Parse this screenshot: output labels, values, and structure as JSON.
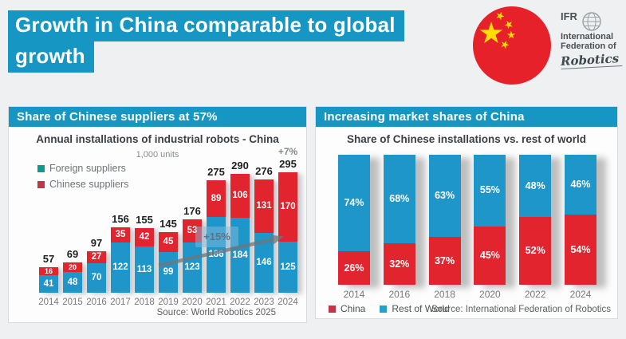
{
  "colors": {
    "accent": "#1697c3",
    "bar_blue": "#1e96ca",
    "bar_red": "#e2242f",
    "legend_teal": "#0d9b8f",
    "legend_crimson": "#c73249",
    "flag_red": "#e62129",
    "flag_yellow": "#ffde00",
    "page_background": "#eef0f1"
  },
  "header": {
    "title_line1": "Growth in China comparable to global",
    "title_line2": "growth"
  },
  "logo": {
    "abbr": "IFR",
    "line1": "International",
    "line2": "Federation of",
    "script": "Robotics"
  },
  "left_panel": {
    "header": "Share of Chinese suppliers at 57%",
    "chart_title": "Annual installations of industrial robots - China",
    "units_label": "1,000 units",
    "legend": [
      {
        "label": "Foreign suppliers",
        "color": "#0d9b8f"
      },
      {
        "label": "Chinese suppliers",
        "color": "#c73249"
      }
    ],
    "growth_annotation": "+15%",
    "top_annotation": "+7%",
    "source": "Source: World Robotics 2025"
  },
  "right_panel": {
    "header": "Increasing market shares of China",
    "chart_title": "Share of Chinese installations vs. rest of world",
    "legend": [
      {
        "label": "China",
        "color": "#c73249"
      },
      {
        "label": "Rest of World",
        "color": "#22a3c9"
      }
    ],
    "source": "Source: International Federation of Robotics"
  },
  "chart_data": [
    {
      "type": "bar",
      "stacked": true,
      "title": "Annual installations of industrial robots - China",
      "subtitle": "1,000 units",
      "categories": [
        "2014",
        "2015",
        "2016",
        "2017",
        "2018",
        "2019",
        "2020",
        "2021",
        "2022",
        "2023",
        "2024"
      ],
      "series": [
        {
          "name": "Foreign suppliers",
          "color": "#1e96ca",
          "values": [
            41,
            48,
            70,
            122,
            113,
            99,
            123,
            186,
            184,
            146,
            125
          ]
        },
        {
          "name": "Chinese suppliers",
          "color": "#e2242f",
          "values": [
            16,
            20,
            27,
            35,
            42,
            45,
            53,
            89,
            106,
            131,
            170
          ]
        }
      ],
      "totals": [
        57,
        69,
        97,
        156,
        155,
        145,
        176,
        275,
        290,
        276,
        295
      ],
      "annotations": [
        {
          "text": "+7%",
          "target": "2024 total"
        },
        {
          "text": "+15%",
          "target": "growth arrow 2019-2024"
        }
      ],
      "ylabel": "1,000 units",
      "legend_position": "upper-left",
      "grid": false,
      "source": "Source: World Robotics 2025"
    },
    {
      "type": "bar",
      "stacked": true,
      "percent": true,
      "title": "Share of Chinese installations vs. rest of world",
      "categories": [
        "2014",
        "2016",
        "2018",
        "2020",
        "2022",
        "2024"
      ],
      "series": [
        {
          "name": "China",
          "color": "#e2242f",
          "values": [
            26,
            32,
            37,
            45,
            52,
            54
          ]
        },
        {
          "name": "Rest of World",
          "color": "#1e96ca",
          "values": [
            74,
            68,
            63,
            55,
            48,
            46
          ]
        }
      ],
      "ylim": [
        0,
        100
      ],
      "legend_position": "bottom",
      "grid": false,
      "source": "Source: International Federation of Robotics"
    }
  ]
}
